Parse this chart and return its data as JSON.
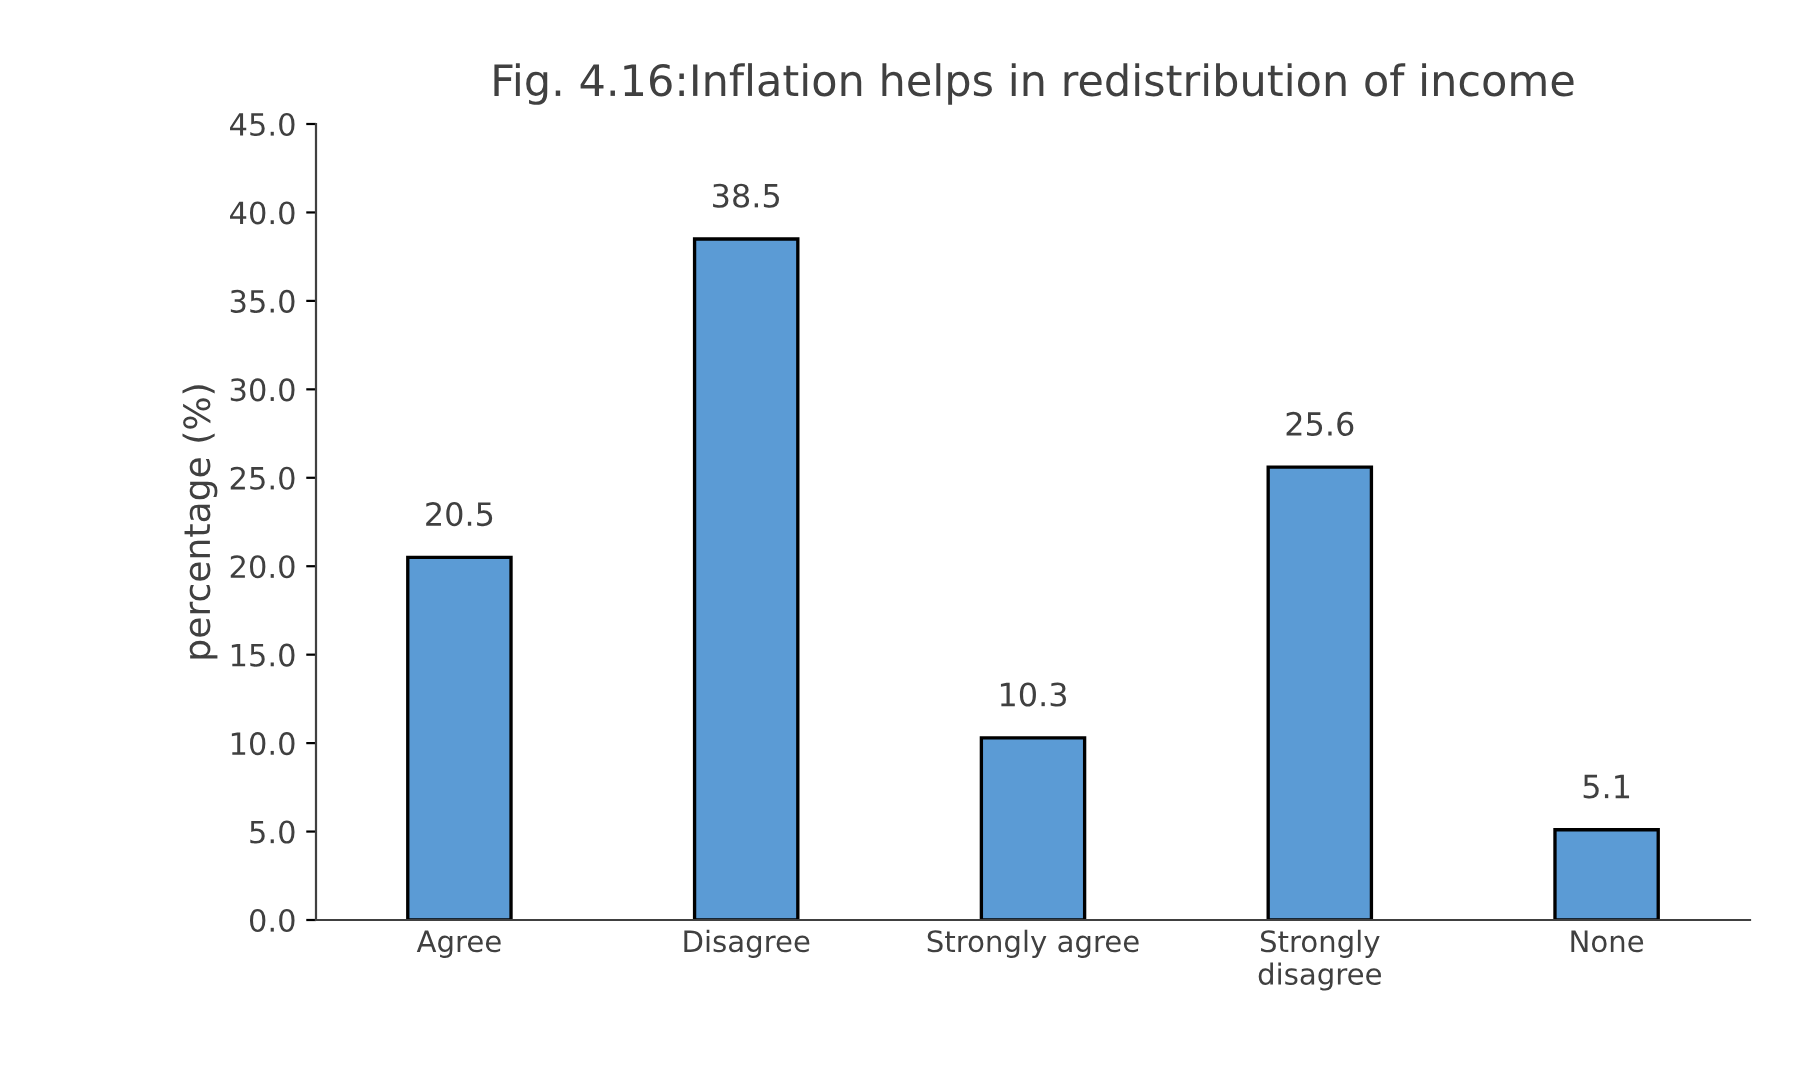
{
  "chart_data": {
    "type": "bar",
    "title": "Fig. 4.16:Inflation helps in redistribution of income",
    "ylabel": "percentage (%)",
    "categories": [
      "Agree",
      "Disagree",
      "Strongly agree",
      "Strongly\ndisagree",
      "None"
    ],
    "values": [
      20.5,
      38.5,
      10.3,
      25.6,
      5.1
    ],
    "color": "#5b9bd5",
    "data_labels": true,
    "grid": false,
    "ylim": [
      0,
      45
    ],
    "yticks": [
      {
        "value": 0,
        "label": "0.0"
      },
      {
        "value": 5,
        "label": "5.0"
      },
      {
        "value": 10,
        "label": "10.0"
      },
      {
        "value": 15,
        "label": "15.0"
      },
      {
        "value": 20,
        "label": "20.0"
      },
      {
        "value": 25,
        "label": "25.0"
      },
      {
        "value": 30,
        "label": "30.0"
      },
      {
        "value": 35,
        "label": "35.0"
      },
      {
        "value": 40,
        "label": "40.0"
      },
      {
        "value": 45,
        "label": "45.0"
      }
    ]
  }
}
